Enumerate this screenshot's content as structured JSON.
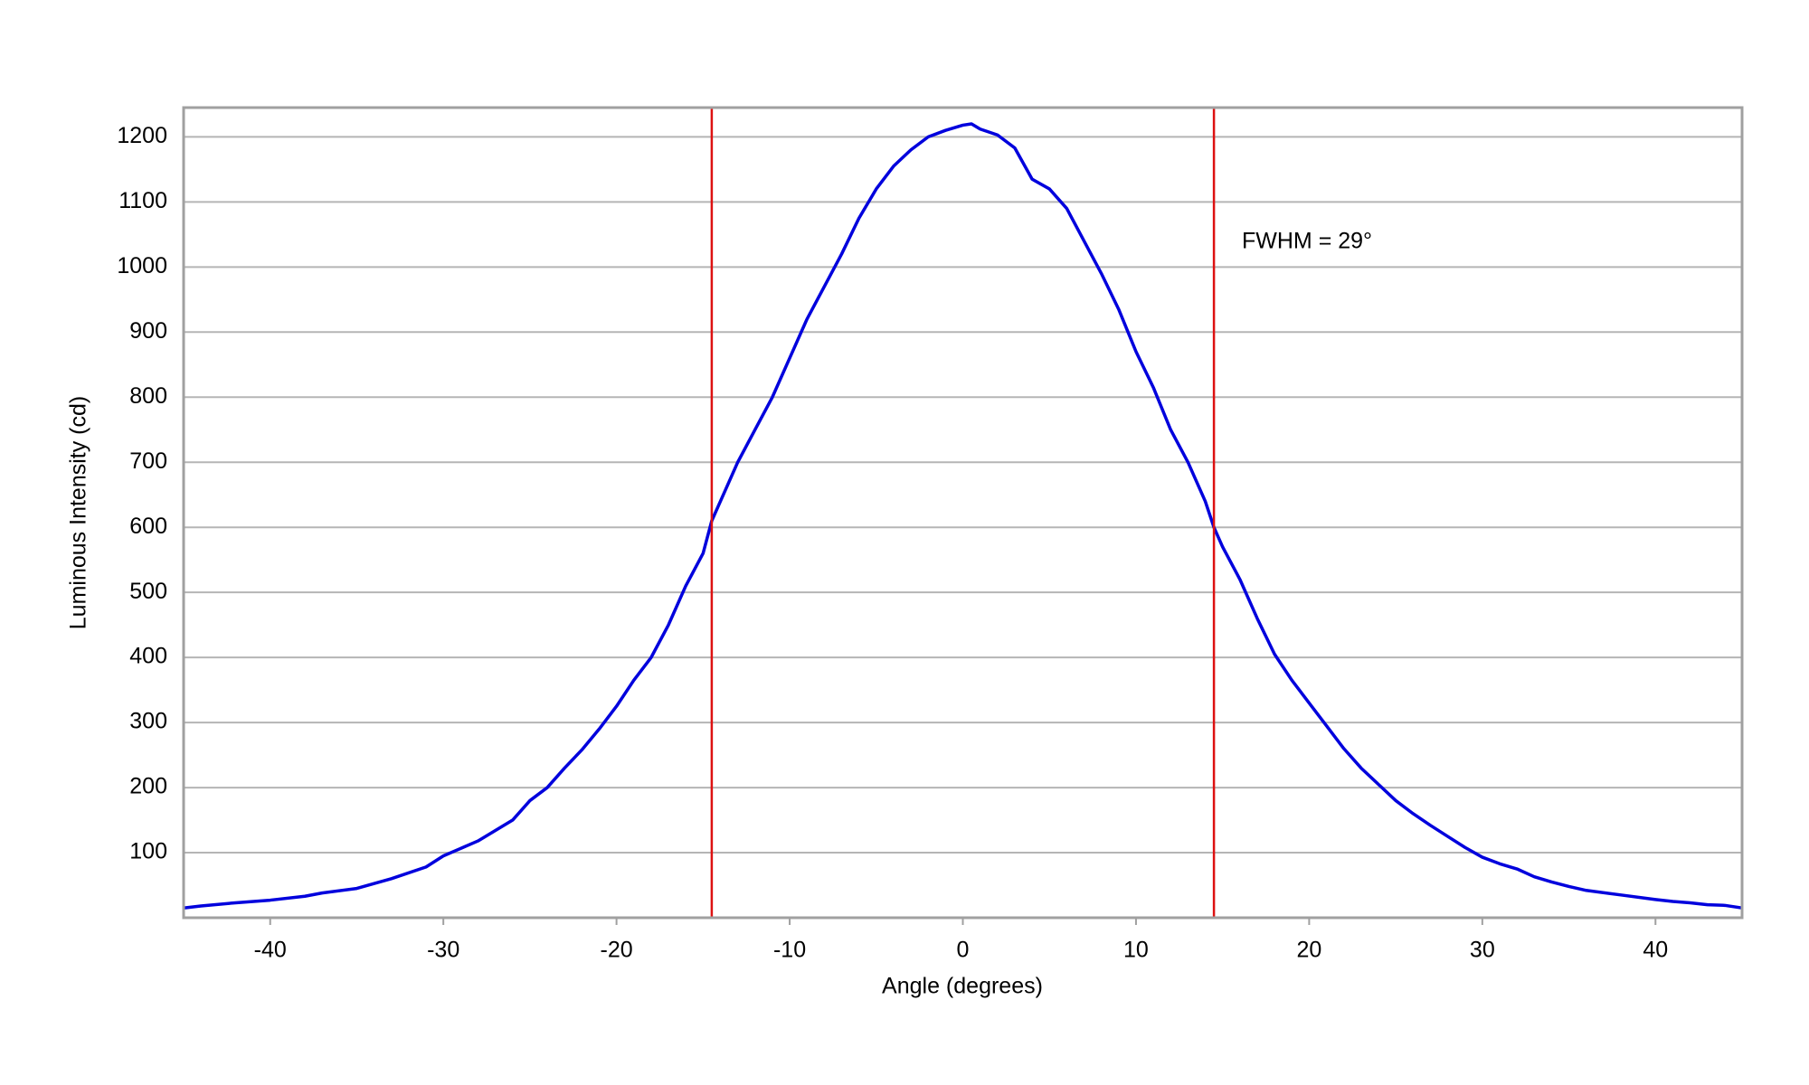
{
  "chart_data": {
    "type": "line",
    "x_label": "Angle (degrees)",
    "y_label": "Luminous Intensity (cd)",
    "annotation": "FWHM = 29°",
    "xlim": [
      -45,
      45
    ],
    "ylim": [
      0,
      1245
    ],
    "xticks": [
      -40,
      -30,
      -20,
      -10,
      0,
      10,
      20,
      30,
      40
    ],
    "yticks": [
      100,
      200,
      300,
      400,
      500,
      600,
      700,
      800,
      900,
      1000,
      1100,
      1200
    ],
    "grid": true,
    "vlines": [
      {
        "x": -14.5,
        "color": "#dd1111"
      },
      {
        "x": 14.5,
        "color": "#dd1111"
      }
    ],
    "x": [
      -45,
      -44,
      -42,
      -40,
      -38,
      -37,
      -35,
      -33,
      -31,
      -30,
      -28,
      -26,
      -25,
      -24,
      -23,
      -22,
      -21,
      -20,
      -19,
      -18,
      -17,
      -16,
      -15,
      -14.5,
      -14,
      -13,
      -12,
      -11,
      -10,
      -9,
      -8,
      -7,
      -6,
      -5,
      -4,
      -3,
      -2,
      -1,
      0,
      0.5,
      1,
      2,
      3,
      4,
      5,
      6,
      7,
      8,
      9,
      10,
      11,
      12,
      13,
      14,
      14.5,
      15,
      16,
      17,
      18,
      19,
      20,
      21,
      22,
      23,
      24,
      25,
      26,
      27,
      28,
      29,
      30,
      31,
      32,
      33,
      34,
      35,
      36,
      38,
      40,
      41,
      42,
      43,
      44,
      45
    ],
    "series": [
      {
        "color": "#0000dd",
        "values": [
          15,
          18,
          23,
          27,
          33,
          38,
          45,
          60,
          78,
          95,
          118,
          150,
          180,
          200,
          230,
          258,
          290,
          325,
          365,
          400,
          450,
          510,
          560,
          610,
          640,
          700,
          750,
          800,
          860,
          920,
          970,
          1020,
          1075,
          1120,
          1155,
          1180,
          1200,
          1210,
          1218,
          1220,
          1212,
          1203,
          1183,
          1135,
          1120,
          1090,
          1040,
          990,
          935,
          870,
          815,
          750,
          700,
          640,
          600,
          570,
          520,
          460,
          405,
          365,
          330,
          295,
          260,
          230,
          205,
          180,
          160,
          142,
          125,
          108,
          93,
          83,
          75,
          63,
          55,
          48,
          42,
          35,
          28,
          25,
          23,
          20,
          19,
          15
        ]
      }
    ]
  }
}
